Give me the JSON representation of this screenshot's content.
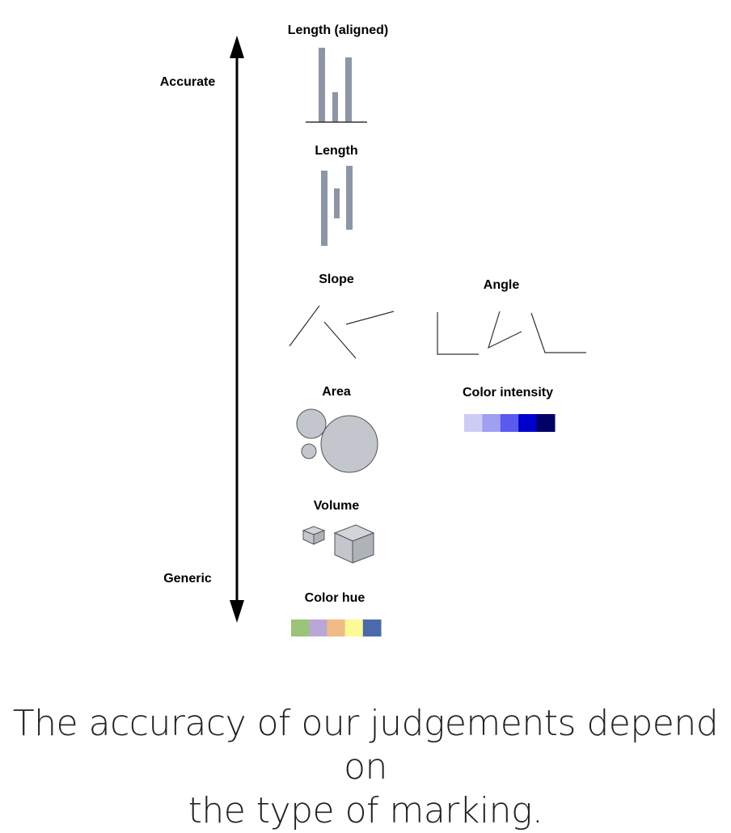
{
  "axis": {
    "top_label": "Accurate",
    "bottom_label": "Generic"
  },
  "channels": {
    "length_aligned": "Length (aligned)",
    "length": "Length",
    "slope": "Slope",
    "angle": "Angle",
    "area": "Area",
    "color_intensity": "Color intensity",
    "volume": "Volume",
    "color_hue": "Color hue"
  },
  "colors": {
    "bar_gray": "#8c96a6",
    "circle_fill": "#c3c6cc",
    "intensity_swatches": [
      "#ccccf5",
      "#a0a0f0",
      "#5a5af0",
      "#0000cc",
      "#000066"
    ],
    "hue_swatches": [
      "#99c47a",
      "#b9a8d6",
      "#f0bb86",
      "#fbfa95",
      "#4a6aac"
    ]
  },
  "caption": {
    "line1": "The accuracy of our judgements depend on",
    "line2": "the type of marking."
  }
}
